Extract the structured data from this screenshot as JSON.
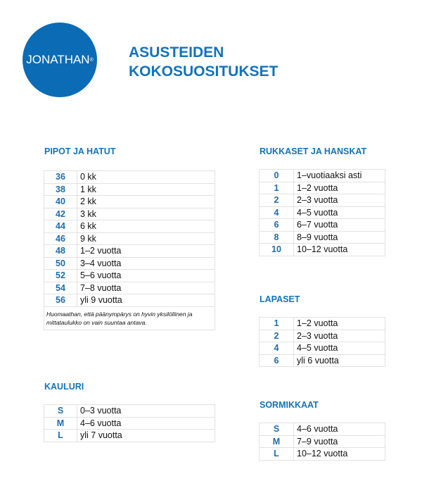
{
  "logo": {
    "text": "JONATHAN",
    "mark": "®"
  },
  "title": {
    "line1": "ASUSTEIDEN",
    "line2": "KOKOSUOSITUKSET"
  },
  "pipot": {
    "heading": "PIPOT JA HATUT",
    "rows": [
      [
        "36",
        "0 kk"
      ],
      [
        "38",
        "1 kk"
      ],
      [
        "40",
        "2 kk"
      ],
      [
        "42",
        "3 kk"
      ],
      [
        "44",
        "6 kk"
      ],
      [
        "46",
        "9 kk"
      ],
      [
        "48",
        "1–2 vuotta"
      ],
      [
        "50",
        "3–4 vuotta"
      ],
      [
        "52",
        "5–6 vuotta"
      ],
      [
        "54",
        "7–8 vuotta"
      ],
      [
        "56",
        "yli 9 vuotta"
      ]
    ],
    "note": "Huomaathan, että päänympärys on hyvin yksilöllinen ja mittataulukko on vain suuntaa antava."
  },
  "kauluri": {
    "heading": "KAULURI",
    "rows": [
      [
        "S",
        "0–3 vuotta"
      ],
      [
        "M",
        "4–6 vuotta"
      ],
      [
        "L",
        "yli 7 vuotta"
      ]
    ]
  },
  "rukkaset": {
    "heading": "RUKKASET JA HANSKAT",
    "rows": [
      [
        "0",
        "1–vuotiaaksi asti"
      ],
      [
        "1",
        "1–2 vuotta"
      ],
      [
        "2",
        "2–3 vuotta"
      ],
      [
        "4",
        "4–5 vuotta"
      ],
      [
        "6",
        "6–7 vuotta"
      ],
      [
        "8",
        "8–9 vuotta"
      ],
      [
        "10",
        "10–12 vuotta"
      ]
    ]
  },
  "lapaset": {
    "heading": "LAPASET",
    "rows": [
      [
        "1",
        "1–2 vuotta"
      ],
      [
        "2",
        "2–3 vuotta"
      ],
      [
        "4",
        "4–5 vuotta"
      ],
      [
        "6",
        "yli 6 vuotta"
      ]
    ]
  },
  "sormikkaat": {
    "heading": "SORMIKKAAT",
    "rows": [
      [
        "S",
        "4–6 vuotta"
      ],
      [
        "M",
        "7–9 vuotta"
      ],
      [
        "L",
        "10–12 vuotta"
      ]
    ]
  }
}
